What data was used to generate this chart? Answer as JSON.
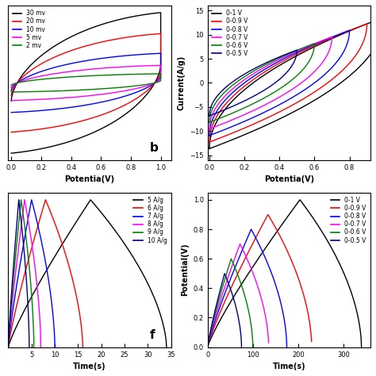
{
  "panel_b": {
    "xlabel": "Potentia(V)",
    "legend_labels": [
      "30 mv",
      "20 mv",
      "10 mv",
      "5 mv",
      "2 mv"
    ],
    "legend_colors": [
      "#000000",
      "#ff0000",
      "#0000ff",
      "#ff00ff",
      "#008000"
    ],
    "scales": [
      1.0,
      0.7,
      0.42,
      0.25,
      0.13
    ]
  },
  "panel_c": {
    "xlabel": "Potentia(V)",
    "ylabel": "Current(A/g)",
    "legend_labels": [
      "0-1 V",
      "0-0.9 V",
      "0-0.8 V",
      "0-0.7 V",
      "0-0.6 V",
      "0-0.5 V"
    ],
    "legend_colors": [
      "#000000",
      "#ff0000",
      "#0000ff",
      "#ff00ff",
      "#008000",
      "#000080"
    ],
    "voltage_windows": [
      1.0,
      0.9,
      0.8,
      0.7,
      0.6,
      0.5
    ],
    "ylim": [
      -16,
      16
    ]
  },
  "panel_f": {
    "xlabel": "Time(s)",
    "ylabel": "Potentia(V)",
    "legend_labels": [
      "5 A/g",
      "6 A/g",
      "7 A/g",
      "8 A/g",
      "9 A/g",
      "10 A/g"
    ],
    "legend_colors": [
      "#000000",
      "#ff0000",
      "#0000ff",
      "#ff00ff",
      "#008000",
      "#000080"
    ],
    "total_times": [
      34,
      16,
      10,
      7,
      5.5,
      4.5
    ],
    "charge_fracs": [
      0.52,
      0.5,
      0.5,
      0.5,
      0.5,
      0.5
    ]
  },
  "panel_g": {
    "xlabel": "Time(s)",
    "ylabel": "Potential(V)",
    "legend_labels": [
      "0-1 V",
      "0-0.9 V",
      "0-0.8 V",
      "0-0.7 V",
      "0-0.6 V",
      "0-0.5 V"
    ],
    "legend_colors": [
      "#000000",
      "#ff0000",
      "#0000ff",
      "#ff00ff",
      "#008000",
      "#000080"
    ],
    "voltage_maxes": [
      1.0,
      0.9,
      0.8,
      0.7,
      0.6,
      0.5
    ],
    "total_times": [
      340,
      230,
      175,
      135,
      100,
      75
    ],
    "charge_fracs": [
      0.6,
      0.58,
      0.55,
      0.53,
      0.52,
      0.5
    ]
  }
}
